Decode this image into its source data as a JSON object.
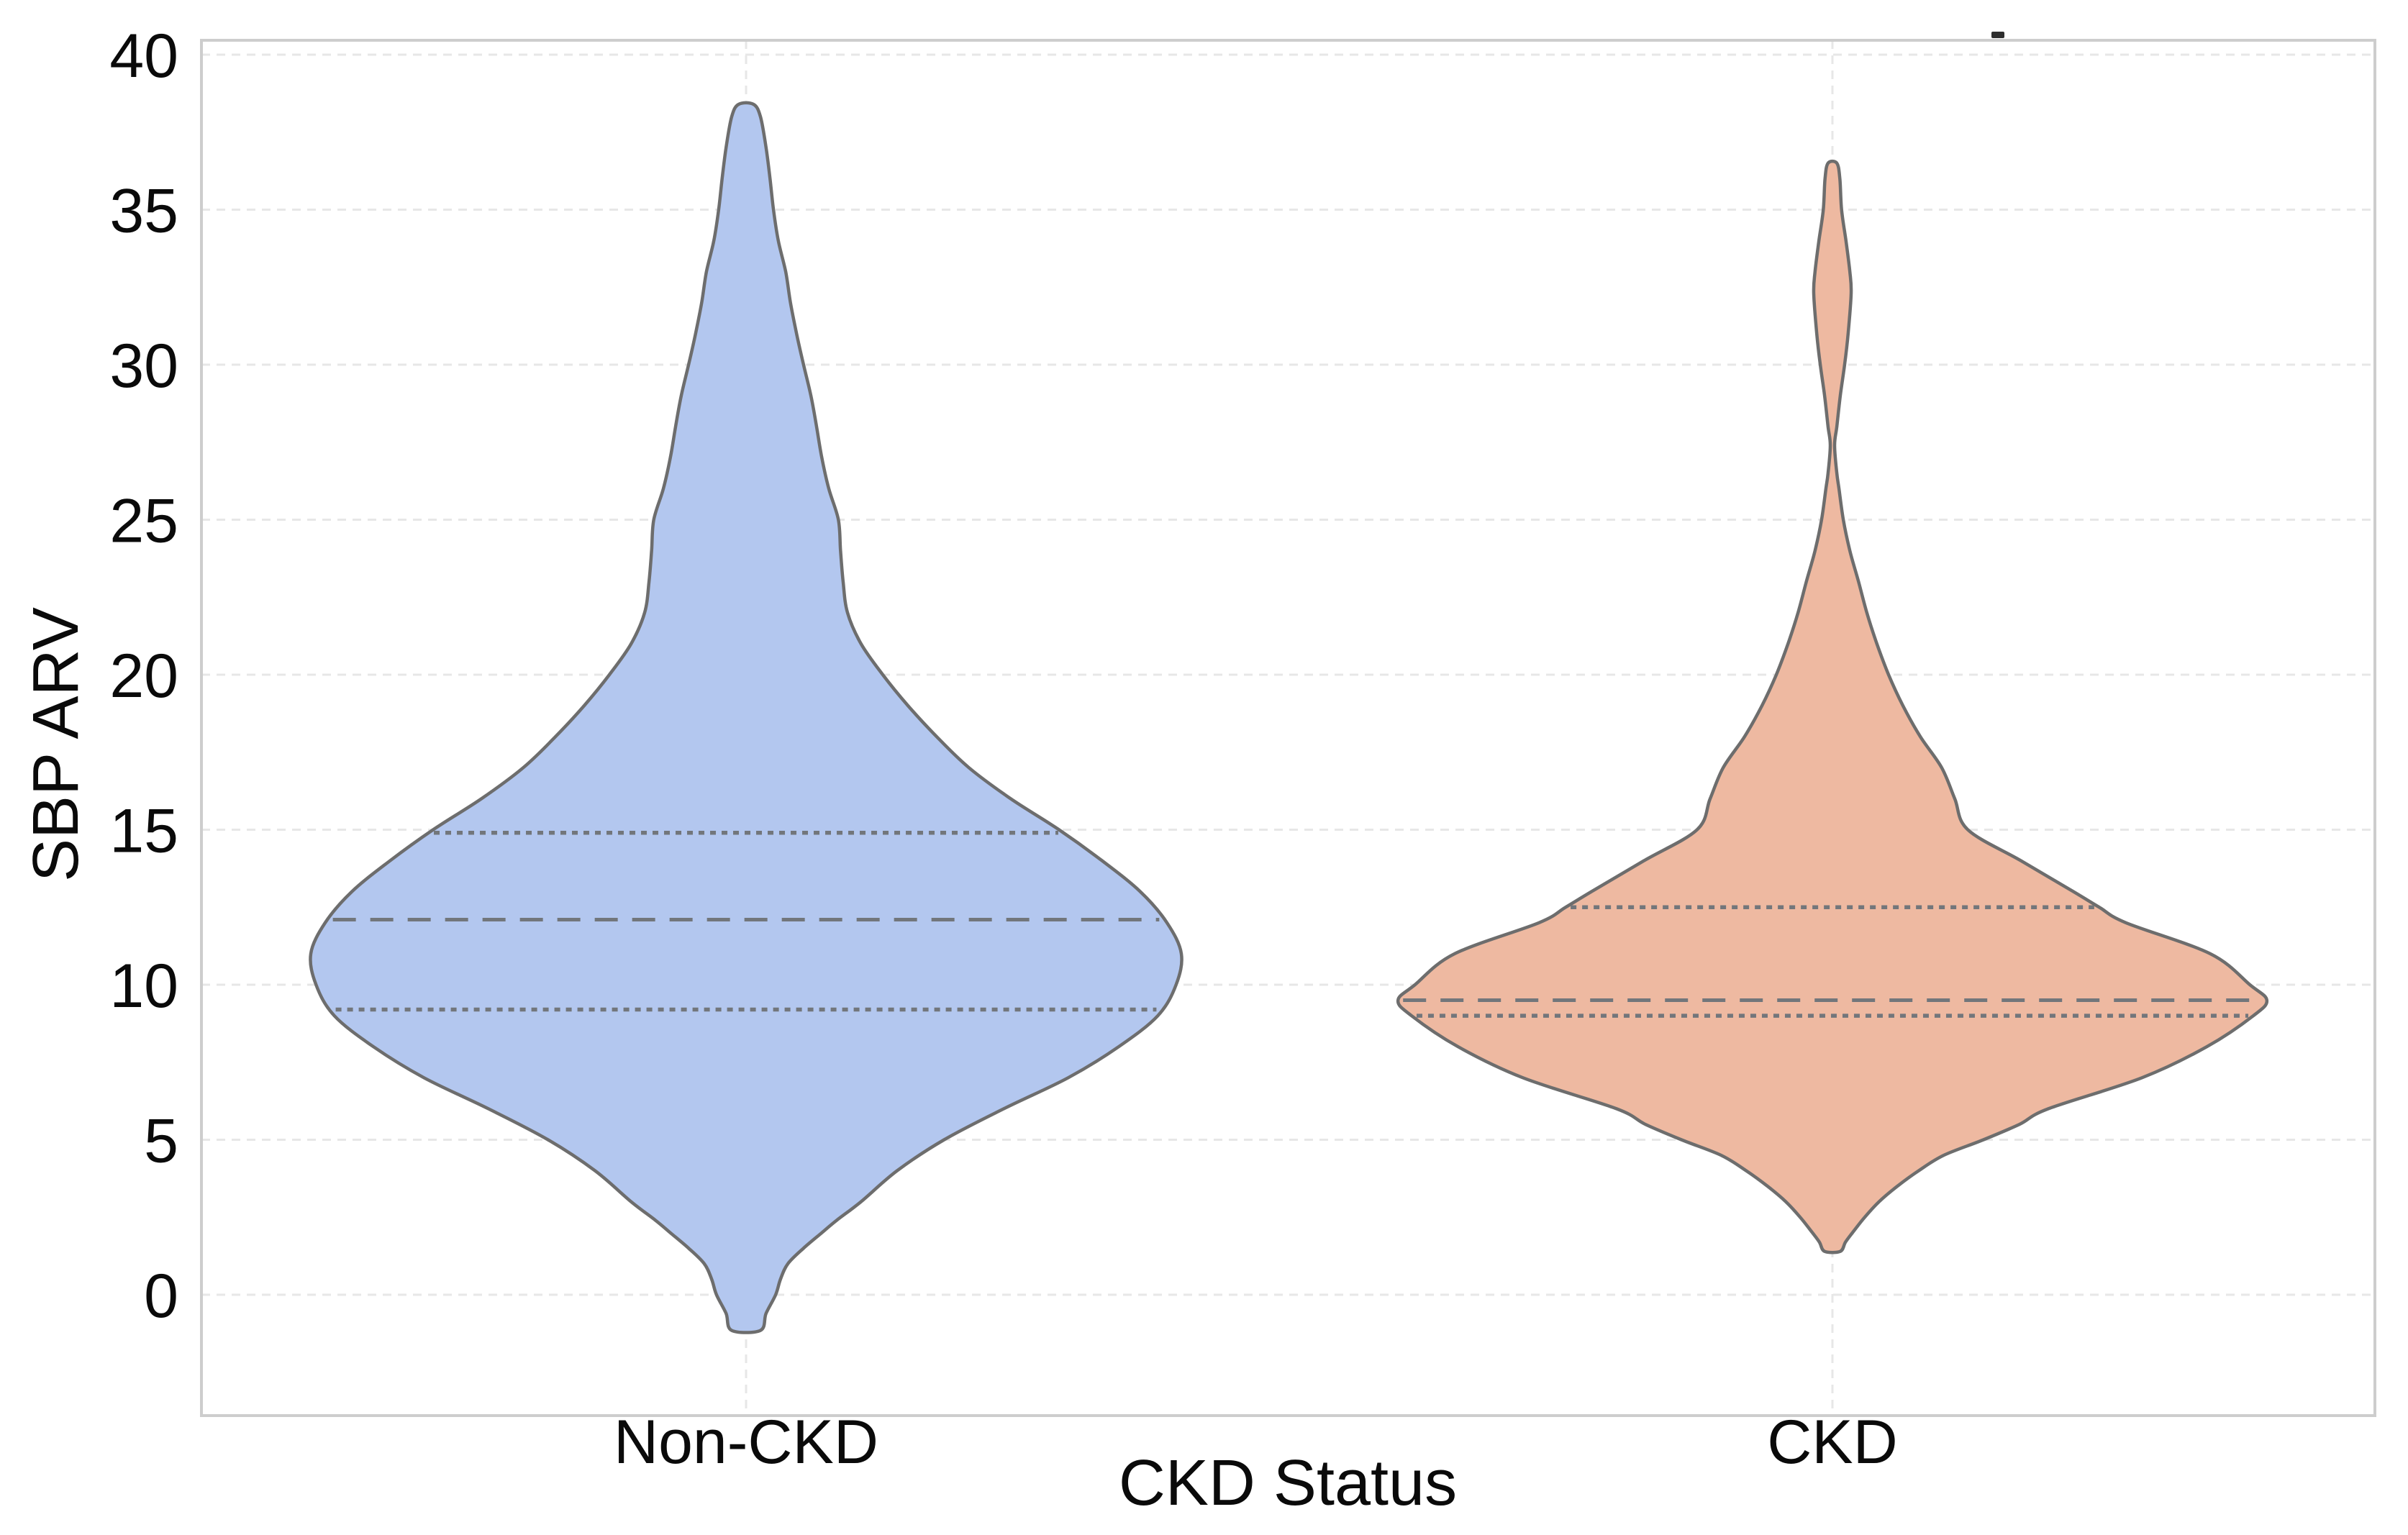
{
  "figure": {
    "background": "#ffffff",
    "top_right_mark": "small dark dash above plot frame at upper right"
  },
  "chart_data": {
    "type": "violin",
    "title": "",
    "xlabel": "CKD Status",
    "ylabel": "SBP ARV",
    "categories": [
      "Non-CKD",
      "CKD"
    ],
    "yticks": [
      0,
      5,
      10,
      15,
      20,
      25,
      30,
      35,
      40
    ],
    "ylim": [
      -3.9,
      40.5
    ],
    "grid": {
      "horizontal": true,
      "vertical": true,
      "style": "dashed"
    },
    "legend": "none",
    "inner_lines": "quartiles (dotted) and median (dashed)",
    "series": [
      {
        "name": "Non-CKD",
        "fill": "#b3c7ef",
        "min": -1.15,
        "q1": 9.2,
        "median": 12.1,
        "q3": 14.9,
        "max": 38.4,
        "density_profile": [
          [
            38.4,
            0.017
          ],
          [
            38.0,
            0.033
          ],
          [
            37.0,
            0.046
          ],
          [
            36.0,
            0.055
          ],
          [
            35.0,
            0.063
          ],
          [
            34.0,
            0.074
          ],
          [
            33.0,
            0.091
          ],
          [
            32.0,
            0.102
          ],
          [
            31.0,
            0.116
          ],
          [
            30.0,
            0.132
          ],
          [
            29.0,
            0.149
          ],
          [
            28.0,
            0.162
          ],
          [
            27.0,
            0.174
          ],
          [
            26.0,
            0.19
          ],
          [
            25.0,
            0.212
          ],
          [
            24.0,
            0.217
          ],
          [
            23.0,
            0.223
          ],
          [
            22.0,
            0.233
          ],
          [
            21.0,
            0.264
          ],
          [
            20.0,
            0.314
          ],
          [
            19.0,
            0.372
          ],
          [
            18.0,
            0.438
          ],
          [
            17.0,
            0.512
          ],
          [
            16.0,
            0.608
          ],
          [
            15.0,
            0.719
          ],
          [
            14.0,
            0.818
          ],
          [
            13.0,
            0.906
          ],
          [
            12.0,
            0.967
          ],
          [
            11.0,
            1.0
          ],
          [
            10.0,
            0.988
          ],
          [
            9.0,
            0.946
          ],
          [
            8.0,
            0.856
          ],
          [
            7.0,
            0.74
          ],
          [
            6.0,
            0.592
          ],
          [
            5.0,
            0.455
          ],
          [
            4.0,
            0.347
          ],
          [
            3.0,
            0.264
          ],
          [
            2.4,
            0.208
          ],
          [
            2.0,
            0.174
          ],
          [
            1.5,
            0.132
          ],
          [
            1.0,
            0.096
          ],
          [
            0.5,
            0.079
          ],
          [
            0.0,
            0.068
          ],
          [
            -0.6,
            0.046
          ],
          [
            -1.15,
            0.033
          ]
        ]
      },
      {
        "name": "CKD",
        "fill": "#eeb9a1",
        "min": 1.4,
        "q1": 9.0,
        "median": 9.5,
        "q3": 12.5,
        "max": 36.5,
        "density_profile": [
          [
            36.5,
            0.01
          ],
          [
            36.0,
            0.017
          ],
          [
            35.0,
            0.021
          ],
          [
            34.0,
            0.031
          ],
          [
            33.0,
            0.04
          ],
          [
            32.3,
            0.043
          ],
          [
            31.0,
            0.036
          ],
          [
            30.0,
            0.028
          ],
          [
            29.0,
            0.018
          ],
          [
            28.0,
            0.01
          ],
          [
            27.4,
            0.005
          ],
          [
            26.5,
            0.01
          ],
          [
            26.0,
            0.015
          ],
          [
            25.0,
            0.025
          ],
          [
            24.0,
            0.04
          ],
          [
            23.0,
            0.06
          ],
          [
            22.0,
            0.079
          ],
          [
            21.0,
            0.102
          ],
          [
            20.0,
            0.129
          ],
          [
            19.0,
            0.162
          ],
          [
            18.0,
            0.202
          ],
          [
            17.0,
            0.251
          ],
          [
            16.0,
            0.281
          ],
          [
            15.0,
            0.311
          ],
          [
            14.0,
            0.433
          ],
          [
            13.0,
            0.554
          ],
          [
            12.5,
            0.613
          ],
          [
            12.0,
            0.674
          ],
          [
            11.0,
            0.868
          ],
          [
            10.0,
            0.959
          ],
          [
            9.5,
            0.998
          ],
          [
            9.0,
            0.967
          ],
          [
            8.0,
            0.86
          ],
          [
            7.0,
            0.711
          ],
          [
            6.0,
            0.496
          ],
          [
            5.5,
            0.43
          ],
          [
            5.0,
            0.347
          ],
          [
            4.5,
            0.256
          ],
          [
            4.0,
            0.198
          ],
          [
            3.5,
            0.149
          ],
          [
            3.0,
            0.107
          ],
          [
            2.5,
            0.074
          ],
          [
            2.0,
            0.046
          ],
          [
            1.7,
            0.03
          ],
          [
            1.4,
            0.018
          ]
        ]
      }
    ],
    "colors": {
      "outline": "#6d6d6d",
      "inner_lines": "#72767b",
      "grid": "#e7e7e7",
      "frame": "#cdcdcd",
      "text": "#0a0a0a",
      "mark": "#2d2d2d"
    }
  }
}
